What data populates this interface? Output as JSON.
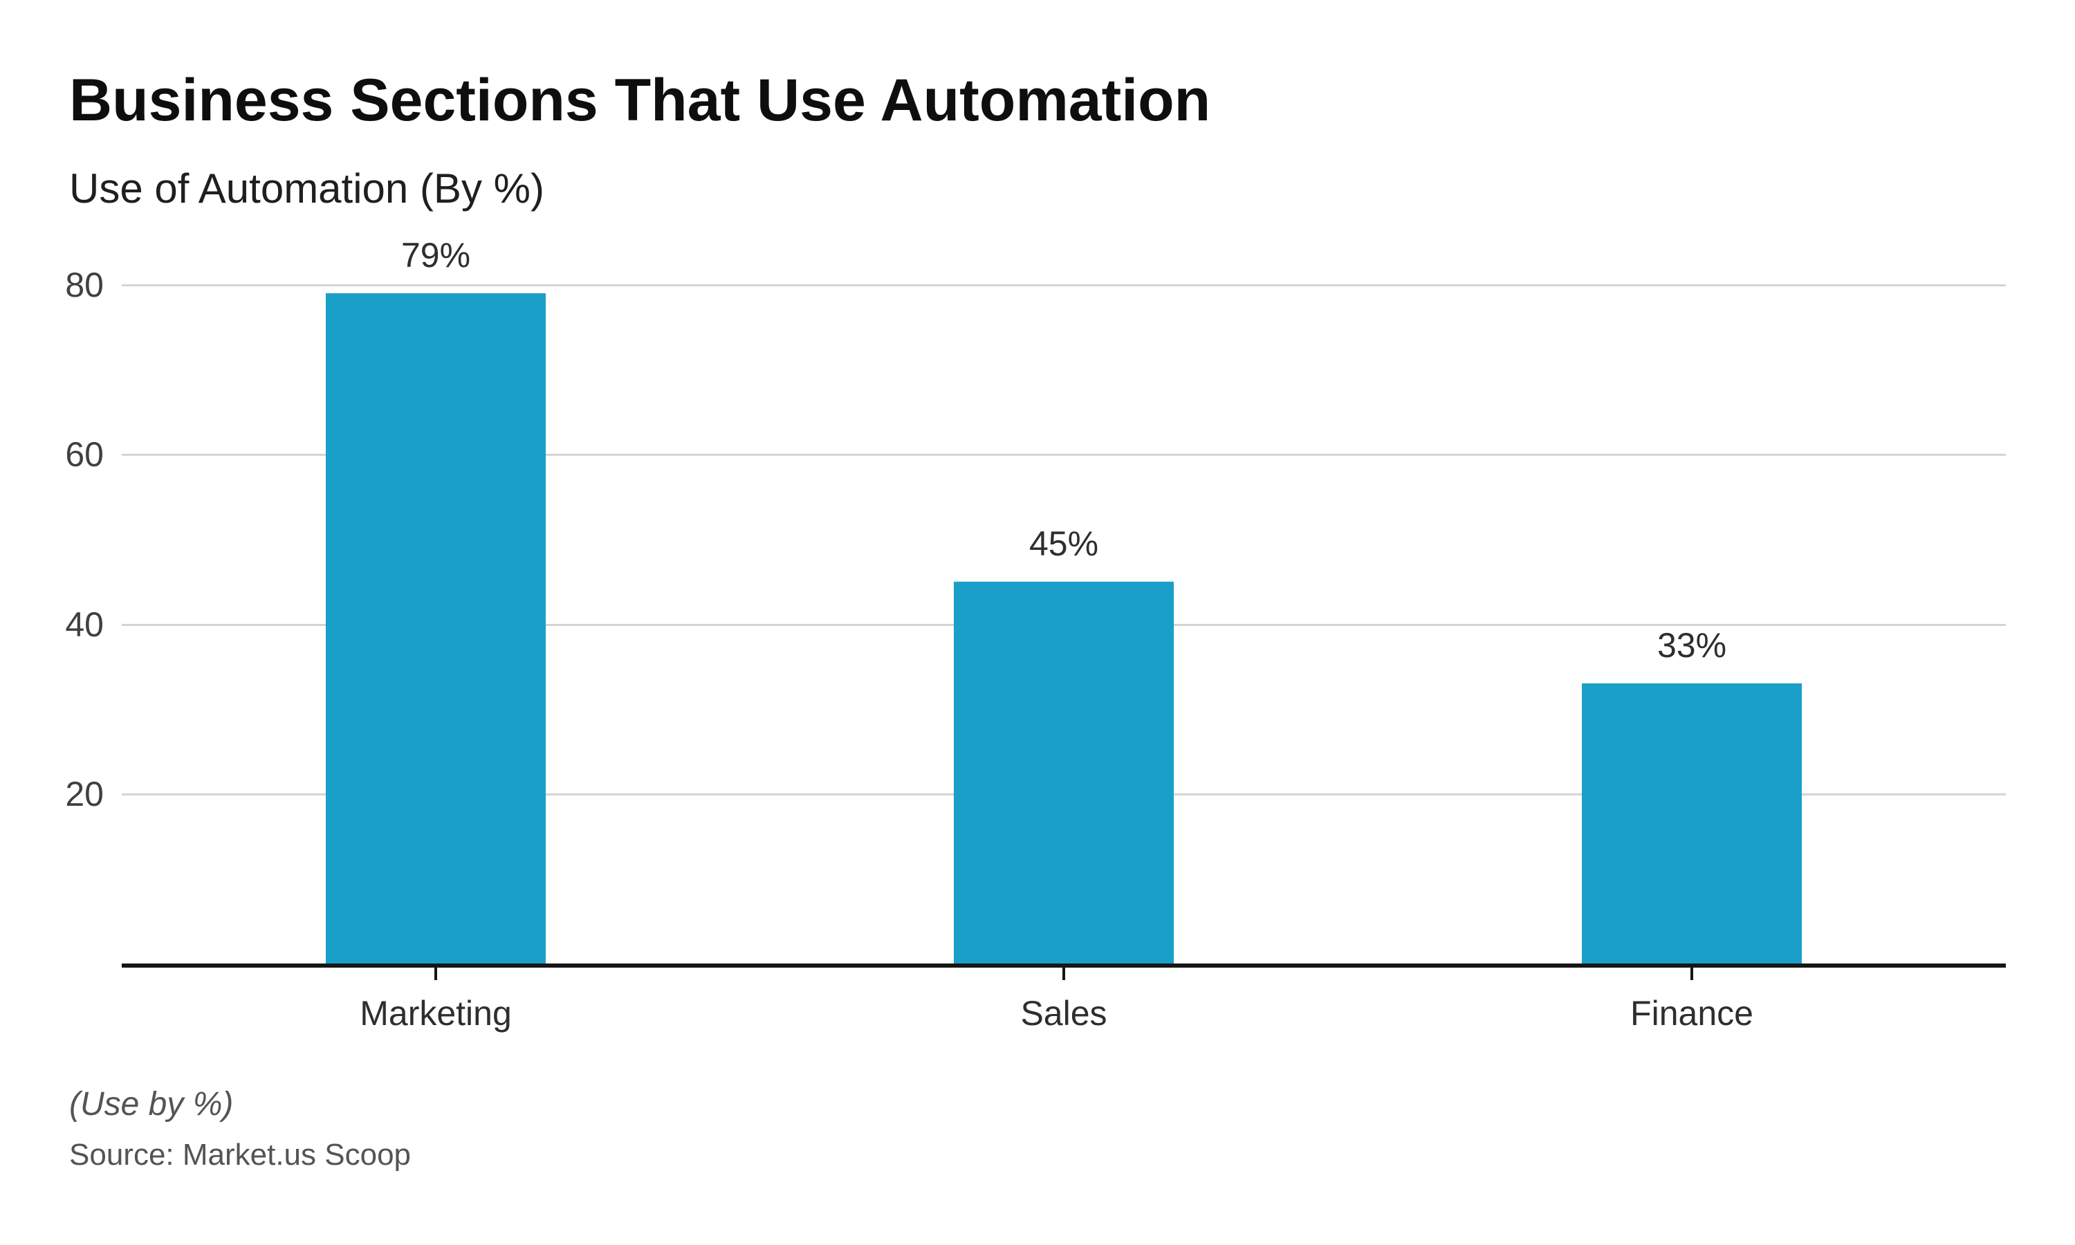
{
  "page": {
    "title": "Business Sections That Use Automation",
    "subtitle": "Use of Automation (By %)",
    "note": "(Use by %)",
    "source": "Source: Market.us Scoop"
  },
  "colors": {
    "bar": "#1a9fc9",
    "gridline": "#d4d4d4",
    "axis_line": "#161616",
    "title_text": "#0e0e0e",
    "subtitle_text": "#1f1f1f",
    "label_text": "#2e2e2e",
    "tick_text": "#404040",
    "muted_text": "#545454",
    "background": "#ffffff"
  },
  "chart_data": {
    "type": "bar",
    "title": "Business Sections That Use Automation",
    "subtitle": "Use of Automation (By %)",
    "categories": [
      "Marketing",
      "Sales",
      "Finance"
    ],
    "values": [
      79,
      45,
      33
    ],
    "value_labels": [
      "79%",
      "45%",
      "33%"
    ],
    "ylim": [
      0,
      80
    ],
    "yticks": [
      20,
      40,
      60,
      80
    ],
    "grid": "horizontal-only",
    "legend": "none",
    "bar_orientation": "vertical",
    "note": "(Use by %)",
    "source": "Source: Market.us Scoop"
  }
}
